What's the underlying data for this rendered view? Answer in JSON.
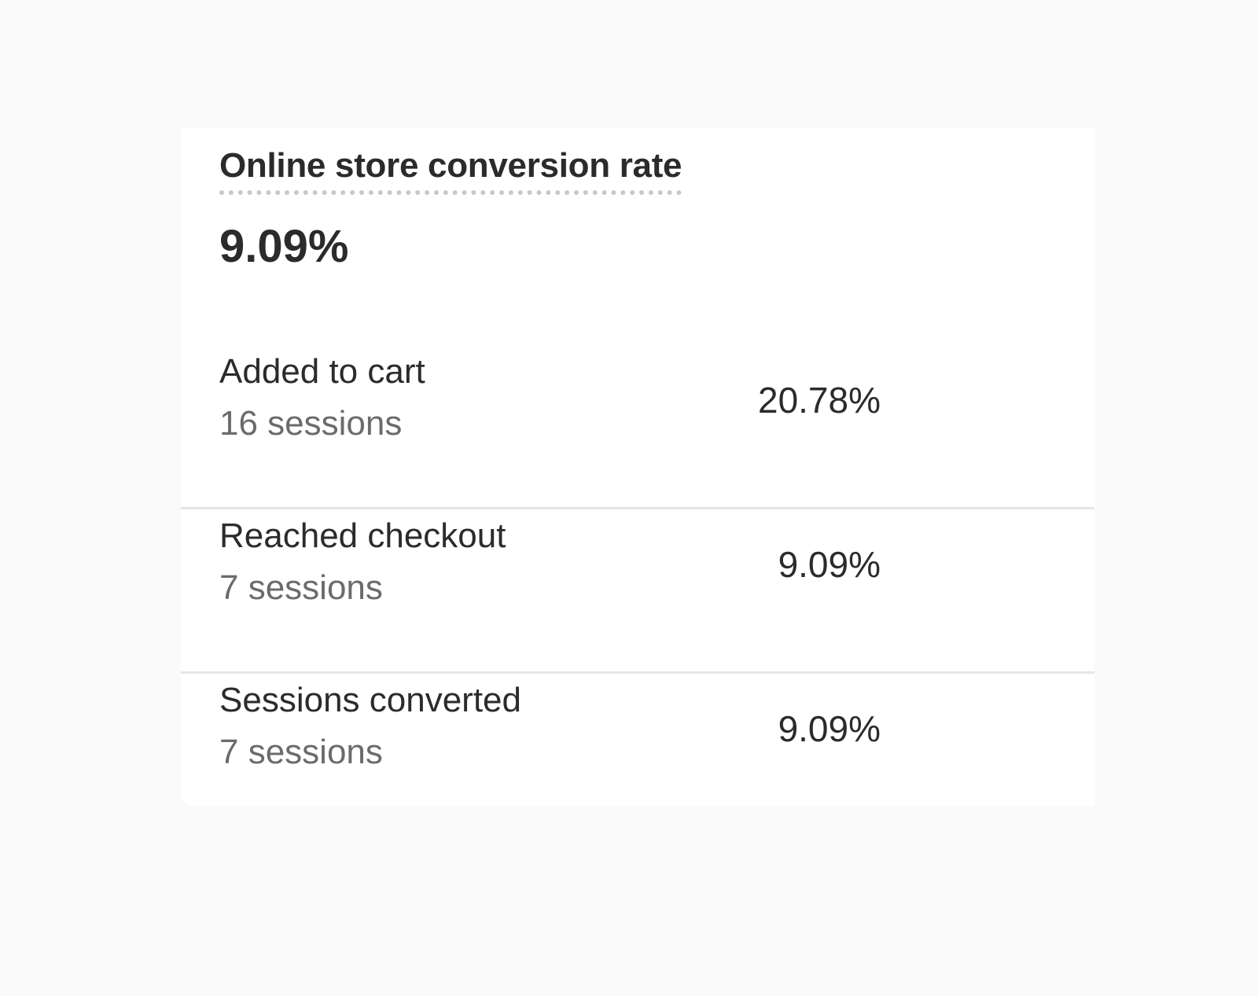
{
  "card": {
    "title": "Online store conversion rate",
    "value": "9.09%",
    "rows": [
      {
        "label": "Added to cart",
        "sessions": "16 sessions",
        "percent": "20.78%"
      },
      {
        "label": "Reached checkout",
        "sessions": "7 sessions",
        "percent": "9.09%"
      },
      {
        "label": "Sessions converted",
        "sessions": "7 sessions",
        "percent": "9.09%"
      }
    ]
  }
}
